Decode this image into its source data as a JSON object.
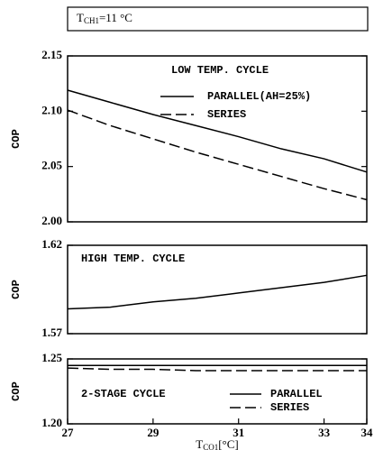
{
  "header": [
    "T",
    "CH1",
    "=11 °C"
  ],
  "chart_data": [
    {
      "type": "line",
      "ylabel": "COP",
      "annotation": "LOW TEMP. CYCLE",
      "x": [
        27,
        28,
        29,
        30,
        31,
        32,
        33,
        34
      ],
      "xlim": [
        27,
        34
      ],
      "ylim": [
        2.0,
        2.15
      ],
      "yticks": [
        {
          "value": 2.0,
          "label": "2.00"
        },
        {
          "value": 2.05,
          "label": "2.05"
        },
        {
          "value": 2.1,
          "label": "2.10"
        },
        {
          "value": 2.15,
          "label": "2.15"
        }
      ],
      "series": [
        {
          "name": "PARALLEL(AH=25%)",
          "color": "#000",
          "style": "solid",
          "values": [
            2.119,
            2.108,
            2.097,
            2.087,
            2.077,
            2.066,
            2.057,
            2.045
          ]
        },
        {
          "name": "SERIES",
          "color": "#000",
          "style": "dashed",
          "values": [
            2.101,
            2.087,
            2.075,
            2.063,
            2.052,
            2.041,
            2.03,
            2.02
          ]
        }
      ]
    },
    {
      "type": "line",
      "ylabel": "COP",
      "annotation": "HIGH TEMP. CYCLE",
      "x": [
        27,
        28,
        29,
        30,
        31,
        32,
        33,
        34
      ],
      "xlim": [
        27,
        34
      ],
      "ylim": [
        1.57,
        1.62
      ],
      "yticks": [
        1.57,
        1.62
      ],
      "series": [
        {
          "color": "#000",
          "style": "solid",
          "values": [
            1.584,
            1.585,
            1.588,
            1.59,
            1.593,
            1.596,
            1.599,
            1.603
          ]
        }
      ]
    },
    {
      "type": "line",
      "ylabel": "COP",
      "annotation": "2-STAGE CYCLE",
      "x": [
        27,
        28,
        29,
        30,
        31,
        32,
        33,
        34
      ],
      "xlim": [
        27,
        34
      ],
      "xticks": [
        27,
        29,
        31,
        33,
        34
      ],
      "xlabel": [
        "T",
        "CO1",
        "[°C]"
      ],
      "ylim": [
        1.2,
        1.25
      ],
      "yticks": [
        {
          "value": 1.2,
          "label": "1.20"
        },
        {
          "value": 1.25,
          "label": "1.25"
        }
      ],
      "series": [
        {
          "name": "PARALLEL",
          "color": "#000",
          "style": "solid",
          "values": [
            1.245,
            1.245,
            1.245,
            1.245,
            1.245,
            1.245,
            1.245,
            1.245
          ]
        },
        {
          "name": "SERIES",
          "color": "#000",
          "style": "dashed",
          "values": [
            1.243,
            1.242,
            1.242,
            1.241,
            1.241,
            1.241,
            1.241,
            1.241
          ]
        }
      ]
    }
  ]
}
